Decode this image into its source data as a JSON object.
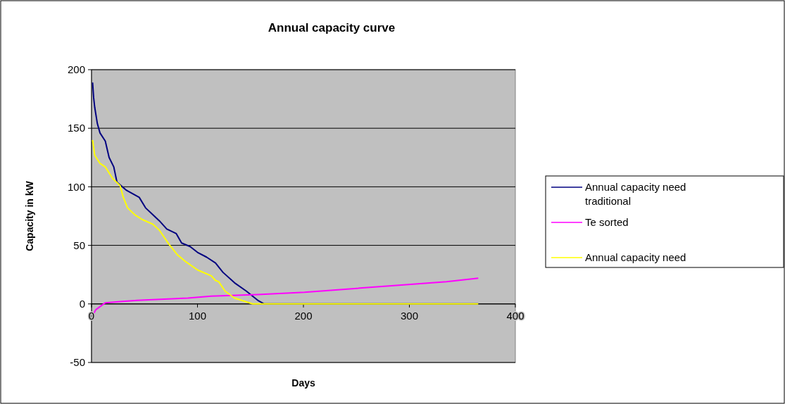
{
  "chart_data": {
    "type": "line",
    "title": "Annual capacity curve",
    "xlabel": "Days",
    "ylabel": "Capacity in kW",
    "xlim": [
      0,
      400
    ],
    "xticks": [
      0,
      100,
      200,
      300,
      400
    ],
    "ylim": [
      -50,
      200
    ],
    "yticks": [
      -50,
      0,
      50,
      100,
      150,
      200
    ],
    "grid": "y",
    "legend": "right",
    "line_style": "solid",
    "series": [
      {
        "name": "Annual capacity need traditional",
        "color": "#000080",
        "x": [
          1,
          2,
          3,
          5.5,
          8,
          13,
          16.6,
          21,
          24,
          33,
          45,
          51,
          58,
          64,
          71,
          80,
          85,
          93,
          100,
          108.5,
          117,
          124,
          135,
          146,
          157,
          163,
          365
        ],
        "values": [
          189,
          176,
          168,
          154,
          146,
          139,
          125,
          117,
          104,
          97,
          91,
          82,
          76,
          71,
          64,
          60,
          52,
          49,
          44,
          40,
          35,
          27,
          18,
          11,
          3,
          0,
          0
        ]
      },
      {
        "name": "Te sorted",
        "color": "#ff00ff",
        "x": [
          1,
          4,
          13,
          27,
          43,
          91,
          113,
          157,
          201,
          246,
          290,
          335,
          365
        ],
        "values": [
          -10,
          -5,
          1,
          2,
          3,
          5,
          6.6,
          8,
          10,
          13,
          16,
          19,
          22
        ]
      },
      {
        "name": "Annual capacity need",
        "color": "#ffff00",
        "x": [
          1,
          3,
          8,
          13,
          20,
          27,
          30,
          34,
          41,
          48,
          58,
          64,
          73,
          81,
          89,
          100,
          113,
          117,
          120,
          126,
          135,
          152,
          365
        ],
        "values": [
          140,
          127,
          120,
          117,
          107,
          101,
          91,
          82,
          76,
          72,
          68,
          63,
          51,
          42,
          36,
          29,
          24,
          20,
          19,
          11,
          5,
          0,
          0
        ]
      }
    ]
  }
}
